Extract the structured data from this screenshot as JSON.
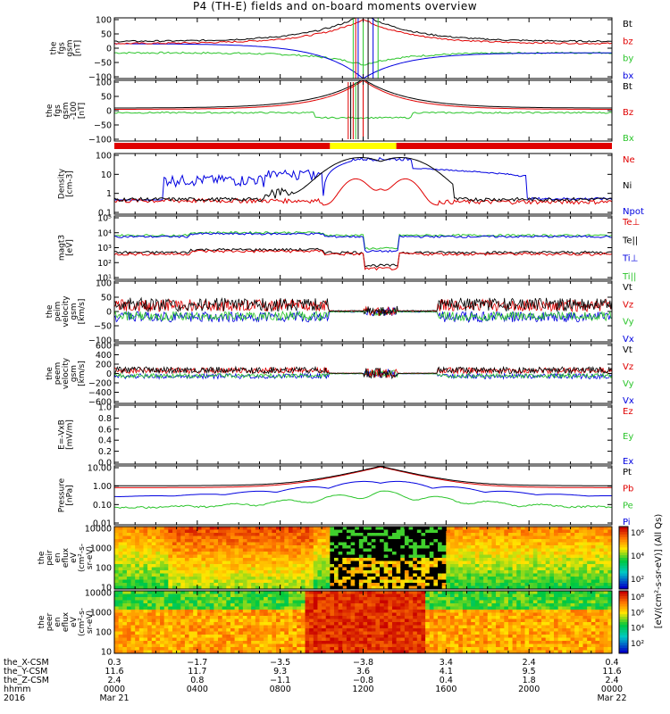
{
  "title": "P4 (TH-E) fields and on-board moments overview",
  "colors": {
    "black": "#000000",
    "red": "#e00000",
    "green": "#2cc52c",
    "blue": "#0000e0",
    "yellow": "#ffff00",
    "bar_red": "#e00000",
    "heat_hi": "#c80000",
    "heat_mid": "#ff8c00",
    "heat_lo": "#00b050"
  },
  "chart_data": [
    {
      "type": "line",
      "ylabel": [
        "the",
        "fgs",
        "gsm",
        "[nT]"
      ],
      "yticks": [
        "100",
        "50",
        "0",
        "−50",
        "−100"
      ],
      "ylim": [
        -100,
        100
      ],
      "legend": [
        {
          "label": "Bt",
          "color": "#000000"
        },
        {
          "label": "bz",
          "color": "#e00000"
        },
        {
          "label": "by",
          "color": "#2cc52c"
        },
        {
          "label": "bx",
          "color": "#0000e0"
        }
      ]
    },
    {
      "type": "line",
      "ylabel": [
        "the",
        "fgs",
        "gsm",
        "-100",
        "[nT]"
      ],
      "yticks": [
        "100",
        "50",
        "0",
        "−50",
        "−100"
      ],
      "ylim": [
        -120,
        120
      ],
      "legend": [
        {
          "label": "Bt",
          "color": "#000000"
        },
        {
          "label": "Bz",
          "color": "#e00000"
        },
        {
          "label": "Bx",
          "color": "#2cc52c"
        }
      ]
    },
    {
      "type": "bar",
      "note": "mode bar",
      "segments": [
        {
          "from": 0.0,
          "to": 10.4,
          "color": "#e00000"
        },
        {
          "from": 10.4,
          "to": 13.6,
          "color": "#ffff00"
        },
        {
          "from": 13.6,
          "to": 24.0,
          "color": "#e00000"
        }
      ]
    },
    {
      "type": "line",
      "ylabel": [
        "Density",
        "[cm-3]"
      ],
      "yticks": [
        "100",
        "10",
        "1",
        "0.1"
      ],
      "yscale": "log",
      "ylim": [
        0.1,
        200
      ],
      "legend": [
        {
          "label": "Ne",
          "color": "#e00000"
        },
        {
          "label": "Ni",
          "color": "#000000"
        },
        {
          "label": "Npot",
          "color": "#0000e0"
        }
      ]
    },
    {
      "type": "line",
      "ylabel": [
        "magt3",
        "[eV]"
      ],
      "yticks": [
        "10⁵",
        "10⁴",
        "10³",
        "10²",
        "10¹"
      ],
      "yscale": "log",
      "ylim": [
        10,
        100000
      ],
      "legend": [
        {
          "label": "Te⊥",
          "color": "#e00000"
        },
        {
          "label": "Te||",
          "color": "#000000"
        },
        {
          "label": "Ti⊥",
          "color": "#0000e0"
        },
        {
          "label": "Ti||",
          "color": "#2cc52c"
        }
      ]
    },
    {
      "type": "line",
      "ylabel": [
        "the",
        "peim",
        "velocity",
        "gsm",
        "[km/s]"
      ],
      "yticks": [
        "100",
        "50",
        "0",
        "−50",
        "−100"
      ],
      "ylim": [
        -100,
        100
      ],
      "legend": [
        {
          "label": "Vt",
          "color": "#000000"
        },
        {
          "label": "Vz",
          "color": "#e00000"
        },
        {
          "label": "Vy",
          "color": "#2cc52c"
        },
        {
          "label": "Vx",
          "color": "#0000e0"
        }
      ]
    },
    {
      "type": "line",
      "ylabel": [
        "the",
        "peem",
        "velocity",
        "gsm",
        "[km/s]"
      ],
      "yticks": [
        "600",
        "400",
        "200",
        "0",
        "−200",
        "−400",
        "−600"
      ],
      "ylim": [
        -600,
        600
      ],
      "legend": [
        {
          "label": "Vt",
          "color": "#000000"
        },
        {
          "label": "Vz",
          "color": "#e00000"
        },
        {
          "label": "Vy",
          "color": "#2cc52c"
        },
        {
          "label": "Vx",
          "color": "#0000e0"
        }
      ]
    },
    {
      "type": "line",
      "ylabel": [
        "E=-VxB",
        "[mV/m]"
      ],
      "yticks": [
        "1.0",
        "0.8",
        "0.6",
        "0.4",
        "0.2",
        "0.0"
      ],
      "ylim": [
        0,
        1
      ],
      "legend": [
        {
          "label": "Ez",
          "color": "#e00000"
        },
        {
          "label": "Ey",
          "color": "#2cc52c"
        },
        {
          "label": "Ex",
          "color": "#0000e0"
        }
      ]
    },
    {
      "type": "line",
      "ylabel": [
        "Pressure",
        "[nPa]"
      ],
      "yticks": [
        "10.00",
        "1.00",
        "0.10",
        "0.01"
      ],
      "yscale": "log",
      "ylim": [
        0.005,
        30
      ],
      "legend": [
        {
          "label": "Pt",
          "color": "#000000"
        },
        {
          "label": "Pb",
          "color": "#e00000"
        },
        {
          "label": "Pe",
          "color": "#2cc52c"
        },
        {
          "label": "Pi",
          "color": "#0000e0"
        }
      ]
    },
    {
      "type": "heatmap",
      "ylabel": [
        "the",
        "peir",
        "en",
        "eflux",
        "eV",
        "(cm²-s-",
        "sr-eV)"
      ],
      "yticks": [
        "10000",
        "1000",
        "100",
        "10"
      ],
      "yscale": "log",
      "ylim": [
        5,
        25000
      ],
      "colorbar_ticks": [
        "10⁶",
        "10⁴",
        "10²"
      ]
    },
    {
      "type": "heatmap",
      "ylabel": [
        "the",
        "peer",
        "en",
        "eflux",
        "eV",
        "(cm²-s-",
        "sr-eV)"
      ],
      "yticks": [
        "10000",
        "1000",
        "100",
        "10"
      ],
      "yscale": "log",
      "ylim": [
        5,
        25000
      ],
      "colorbar_ticks": [
        "10⁸",
        "10⁶",
        "10⁴",
        "10²"
      ]
    }
  ],
  "colorbar_label": "[eV/(cm²-s-sr-eV)] (All Qs)",
  "xaxis": {
    "range": [
      0,
      24
    ],
    "rows": [
      {
        "label": "the_X-CSM",
        "values": [
          "0.3",
          "−1.7",
          "−3.5",
          "−3.8",
          "3.4",
          "2.4",
          "0.4"
        ]
      },
      {
        "label": "the_Y-CSM",
        "values": [
          "11.6",
          "11.7",
          "9.3",
          "3.6",
          "4.1",
          "9.5",
          "11.6"
        ]
      },
      {
        "label": "the_Z-CSM",
        "values": [
          "2.4",
          "0.8",
          "−1.1",
          "−0.8",
          "0.4",
          "1.8",
          "2.4"
        ]
      },
      {
        "label": "hhmm",
        "values": [
          "0000",
          "0400",
          "0800",
          "1200",
          "1600",
          "2000",
          "0000"
        ]
      },
      {
        "label": "2016",
        "values": [
          "Mar 21",
          "",
          "",
          "",
          "",
          "",
          "Mar 22"
        ]
      }
    ]
  }
}
